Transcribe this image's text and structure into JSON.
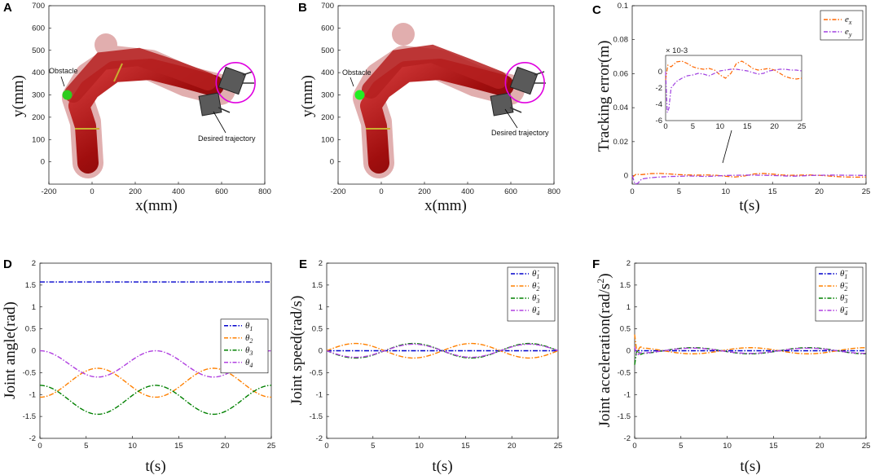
{
  "chart_data": [
    {
      "id": "A",
      "type": "scatter",
      "label": "A",
      "xlabel": "x(mm)",
      "ylabel": "y(mm)",
      "xlim": [
        -200,
        800
      ],
      "ylim": [
        -100,
        700
      ],
      "xticks": [
        -200,
        0,
        200,
        400,
        600,
        800
      ],
      "yticks": [
        0,
        100,
        200,
        300,
        400,
        500,
        600,
        700
      ],
      "obstacle": {
        "x": -115,
        "y": 300,
        "color": "#2ecc1f",
        "label": "Obstacle"
      },
      "trajectory": {
        "cx": 665,
        "cy": 355,
        "r": 90,
        "color": "#e000e0",
        "label": "Desired trajectory"
      }
    },
    {
      "id": "B",
      "type": "scatter",
      "label": "B",
      "xlabel": "x(mm)",
      "ylabel": "y(mm)",
      "xlim": [
        -200,
        800
      ],
      "ylim": [
        -100,
        700
      ],
      "xticks": [
        -200,
        0,
        200,
        400,
        600,
        800
      ],
      "yticks": [
        0,
        100,
        200,
        300,
        400,
        500,
        600,
        700
      ],
      "obstacle": {
        "x": -100,
        "y": 300,
        "color": "#22ee22",
        "label": "Obstacle"
      },
      "trajectory": {
        "cx": 665,
        "cy": 355,
        "r": 90,
        "color": "#e000e0",
        "label": "Desired trajectory"
      }
    },
    {
      "id": "C",
      "type": "line",
      "label": "C",
      "xlabel": "t(s)",
      "ylabel": "Tracking error(m)",
      "xlim": [
        0,
        25
      ],
      "ylim": [
        -0.005,
        0.1
      ],
      "xticks": [
        0,
        5,
        10,
        15,
        20,
        25
      ],
      "yticks": [
        0,
        0.02,
        0.04,
        0.06,
        0.08,
        0.1
      ],
      "ytick_labels": [
        "0",
        "0.02",
        "0.04",
        "0.06",
        "0.08",
        "0.1"
      ],
      "series": [
        {
          "name": "e_x",
          "legend": "e",
          "sub": "x",
          "color": "#ff6600",
          "x": [
            0,
            0.4,
            1,
            2,
            3,
            4,
            5,
            6,
            7,
            8,
            9,
            10,
            11,
            12,
            13,
            14,
            15,
            16,
            17,
            18,
            19,
            20,
            21,
            22,
            23,
            24,
            25
          ],
          "y": [
            -0.001,
            0.0008,
            0.0006,
            0.0012,
            0.0013,
            0.001,
            0.0006,
            0.0004,
            0.0003,
            0.0004,
            0.0002,
            -0.0004,
            -0.0008,
            -0.0002,
            0.001,
            0.0013,
            0.0009,
            0.0004,
            0.0002,
            0.0003,
            0.0004,
            0.0002,
            -0.0002,
            -0.0006,
            -0.0008,
            -0.0009,
            -0.0008
          ]
        },
        {
          "name": "e_y",
          "legend": "e",
          "sub": "y",
          "color": "#a040e0",
          "x": [
            0,
            0.3,
            0.6,
            1,
            2,
            3,
            4,
            5,
            6,
            7,
            8,
            9,
            10,
            11,
            12,
            13,
            14,
            15,
            16,
            17,
            18,
            19,
            20,
            21,
            22,
            23,
            24,
            25
          ],
          "y": [
            0,
            -0.005,
            -0.0045,
            -0.002,
            -0.0012,
            -0.0008,
            -0.0005,
            -0.0004,
            -0.0002,
            -0.0003,
            -0.0005,
            -0.0002,
            0.0001,
            0.0002,
            0.0003,
            0.0003,
            0.0002,
            0.0001,
            -0.0001,
            -0.0003,
            -0.0002,
            0.0001,
            0.0002,
            0.0003,
            0.0003,
            0.0002,
            0.0002,
            0.0001
          ]
        }
      ],
      "inset": {
        "xlim": [
          0,
          25
        ],
        "ylim": [
          -6,
          2
        ],
        "xticks": [
          0,
          5,
          10,
          15,
          20,
          25
        ],
        "yticks": [
          -6,
          -4,
          -2,
          0
        ],
        "scale_label": "×10⁻³",
        "scale_label_display": "× 10-3"
      }
    },
    {
      "id": "D",
      "type": "line",
      "label": "D",
      "xlabel": "t(s)",
      "ylabel": "Joint angle(rad)",
      "xlim": [
        0,
        25
      ],
      "ylim": [
        -2,
        2
      ],
      "xticks": [
        0,
        5,
        10,
        15,
        20,
        25
      ],
      "yticks": [
        -2,
        -1.5,
        -1,
        -0.5,
        0,
        0.5,
        1,
        1.5,
        2
      ],
      "series": [
        {
          "name": "θ1",
          "sym": "θ",
          "sub": "1",
          "color": "#0000cc",
          "func": "const",
          "a": 1.571
        },
        {
          "name": "θ2",
          "sym": "θ",
          "sub": "2",
          "color": "#ff8000",
          "func": "cos",
          "mid": -0.73,
          "amp": -0.33,
          "period": 12.5,
          "phase": 0
        },
        {
          "name": "θ3",
          "sym": "θ",
          "sub": "3",
          "color": "#008000",
          "func": "cos",
          "mid": -1.12,
          "amp": 0.33,
          "period": 12.5,
          "phase": 0
        },
        {
          "name": "θ4",
          "sym": "θ",
          "sub": "4",
          "color": "#b040e0",
          "func": "cos",
          "mid": -0.3,
          "amp": 0.3,
          "period": 12.5,
          "phase": 0
        }
      ]
    },
    {
      "id": "E",
      "type": "line",
      "label": "E",
      "xlabel": "t(s)",
      "ylabel": "Joint speed(rad/s)",
      "xlim": [
        0,
        25
      ],
      "ylim": [
        -2,
        2
      ],
      "xticks": [
        0,
        5,
        10,
        15,
        20,
        25
      ],
      "yticks": [
        -2,
        -1.5,
        -1,
        -0.5,
        0,
        0.5,
        1,
        1.5,
        2
      ],
      "series": [
        {
          "name": "θ̇1",
          "sym": "θ̇",
          "sub": "1",
          "color": "#0000cc",
          "func": "const",
          "a": 0
        },
        {
          "name": "θ̇2",
          "sym": "θ̇",
          "sub": "2",
          "color": "#ff8000",
          "func": "sin",
          "mid": 0,
          "amp": 0.166,
          "period": 12.5,
          "phase": 0
        },
        {
          "name": "θ̇3",
          "sym": "θ̇",
          "sub": "3",
          "color": "#008000",
          "func": "sin",
          "mid": 0,
          "amp": -0.166,
          "period": 12.5,
          "phase": 0
        },
        {
          "name": "θ̇4",
          "sym": "θ̇",
          "sub": "4",
          "color": "#b040e0",
          "func": "sin",
          "mid": 0,
          "amp": -0.15,
          "period": 12.5,
          "phase": 0
        }
      ]
    },
    {
      "id": "F",
      "type": "line",
      "label": "F",
      "xlabel": "t(s)",
      "ylabel": "Joint acceleration(rad/s²)",
      "ylabel_main": "Joint acceleration(rad/s",
      "ylabel_sup": "2",
      "ylabel_end": ")",
      "xlim": [
        0,
        25
      ],
      "ylim": [
        -2,
        2
      ],
      "xticks": [
        0,
        5,
        10,
        15,
        20,
        25
      ],
      "yticks": [
        -2,
        -1.5,
        -1,
        -0.5,
        0,
        0.5,
        1,
        1.5,
        2
      ],
      "series": [
        {
          "name": "θ̈1",
          "sym": "θ̈",
          "sub": "1",
          "color": "#0000cc",
          "func": "const",
          "a": 0
        },
        {
          "name": "θ̈2",
          "sym": "θ̈",
          "sub": "2",
          "color": "#ff8000",
          "func": "cos",
          "mid": 0,
          "amp": 0.07,
          "period": 12.5,
          "phase": 0,
          "spike": 0.3
        },
        {
          "name": "θ̈3",
          "sym": "θ̈",
          "sub": "3",
          "color": "#008000",
          "func": "cos",
          "mid": 0,
          "amp": -0.07,
          "period": 12.5,
          "phase": 0,
          "spike": -0.25
        },
        {
          "name": "θ̈4",
          "sym": "θ̈",
          "sub": "4",
          "color": "#b040e0",
          "func": "cos",
          "mid": 0,
          "amp": -0.06,
          "period": 12.5,
          "phase": 0,
          "spike": 0.15
        }
      ]
    }
  ]
}
